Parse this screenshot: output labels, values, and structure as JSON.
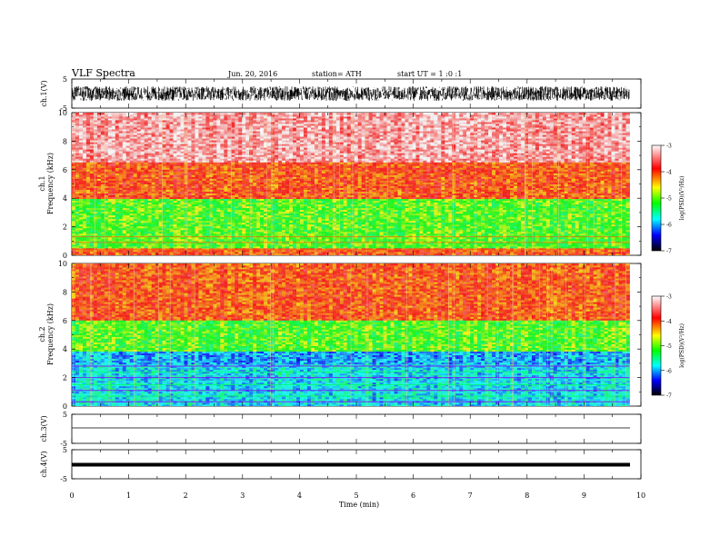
{
  "header": {
    "title": "VLF  Spectra",
    "date": "Jun. 20, 2016",
    "station": "station= ATH",
    "start": "start  UT  =   1  :0  :1"
  },
  "colorbar": {
    "label": "log(PSD)(V²/Hz)",
    "ticks": [
      "-3",
      "-4",
      "-5",
      "-6",
      "-7"
    ],
    "colors": [
      "#ffffff",
      "#ff0000",
      "#ffff00",
      "#00ff00",
      "#00ffff",
      "#0000ff",
      "#000000"
    ]
  },
  "chart_data": [
    {
      "type": "line",
      "panel": "ch1-waveform",
      "ylabel": "ch.1(V)",
      "ylim": [
        -5,
        5
      ],
      "yticks": [
        "5",
        "-5"
      ],
      "description_values": {
        "x_range_min": [
          0,
          9.8
        ],
        "amplitude_range_V": [
          -2.5,
          2.5
        ]
      }
    },
    {
      "type": "heatmap",
      "panel": "ch1-spectrogram",
      "ylabel": "ch.1\nFrequency (kHz)",
      "ylim": [
        0,
        10
      ],
      "yticks": [
        "0",
        "2",
        "4",
        "6",
        "8",
        "10"
      ],
      "xlim_min": [
        0,
        9.8
      ],
      "layers_kHz_logPSD": [
        {
          "from": 0,
          "to": 0.5,
          "logPSD": -4
        },
        {
          "from": 0.5,
          "to": 4.0,
          "logPSD": -5
        },
        {
          "from": 4.0,
          "to": 6.5,
          "logPSD": -4
        },
        {
          "from": 6.5,
          "to": 10,
          "logPSD": -3.3
        }
      ]
    },
    {
      "type": "heatmap",
      "panel": "ch2-spectrogram",
      "ylabel": "ch.2\nFrequency (kHz)",
      "ylim": [
        0,
        10
      ],
      "yticks": [
        "0",
        "2",
        "4",
        "6",
        "8",
        "10"
      ],
      "xlim_min": [
        0,
        9.8
      ],
      "layers_kHz_logPSD": [
        {
          "from": 0,
          "to": 3.0,
          "logPSD": -5.8
        },
        {
          "from": 3.0,
          "to": 3.8,
          "logPSD": -6
        },
        {
          "from": 3.8,
          "to": 6.0,
          "logPSD": -5
        },
        {
          "from": 6.0,
          "to": 10,
          "logPSD": -4
        }
      ]
    },
    {
      "type": "line",
      "panel": "ch3-waveform",
      "ylabel": "ch.3(V)",
      "ylim": [
        -5,
        5
      ],
      "yticks": [
        "5",
        "-5"
      ],
      "level_V": 0
    },
    {
      "type": "line",
      "panel": "ch4-waveform",
      "ylabel": "ch.4(V)",
      "ylim": [
        -5,
        5
      ],
      "yticks": [
        "5",
        "-5"
      ],
      "level_V": 0
    }
  ],
  "xaxis": {
    "label": "Time  (min)",
    "ticks": [
      "0",
      "1",
      "2",
      "3",
      "4",
      "5",
      "6",
      "7",
      "8",
      "9",
      "10"
    ],
    "xlim": [
      0,
      10
    ]
  }
}
